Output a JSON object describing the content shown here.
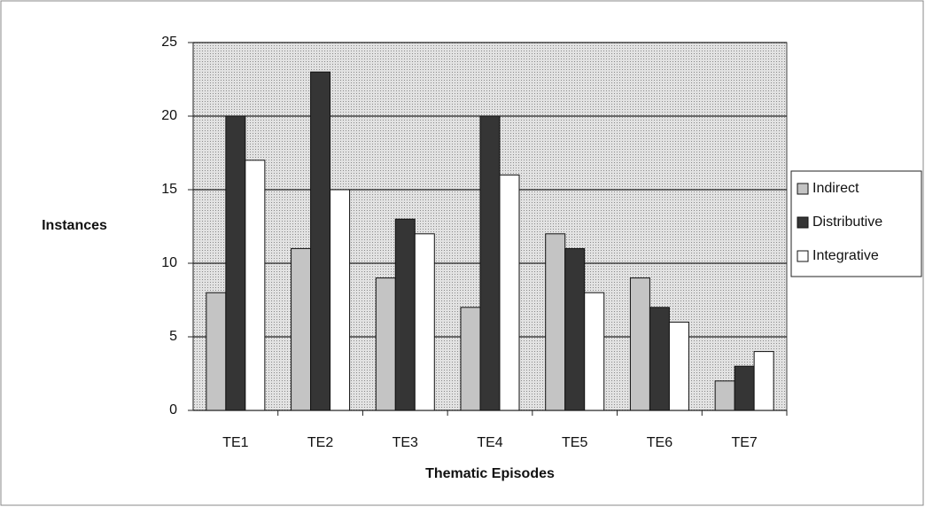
{
  "chart_data": {
    "type": "bar",
    "x_label": "Thematic Episodes",
    "y_label": "Instances",
    "categories": [
      "TE1",
      "TE2",
      "TE3",
      "TE4",
      "TE5",
      "TE6",
      "TE7"
    ],
    "series": [
      {
        "name": "Indirect",
        "color": "#c4c4c4",
        "values": [
          8,
          11,
          9,
          7,
          12,
          9,
          2
        ]
      },
      {
        "name": "Distributive",
        "color": "#353535",
        "values": [
          20,
          23,
          13,
          20,
          11,
          7,
          3
        ]
      },
      {
        "name": "Integrative",
        "color": "#ffffff",
        "values": [
          17,
          15,
          12,
          16,
          8,
          6,
          4
        ]
      }
    ],
    "ylim": [
      0,
      25
    ],
    "yticks": [
      0,
      5,
      10,
      15,
      20,
      25
    ],
    "grid": true,
    "legend": "right"
  }
}
